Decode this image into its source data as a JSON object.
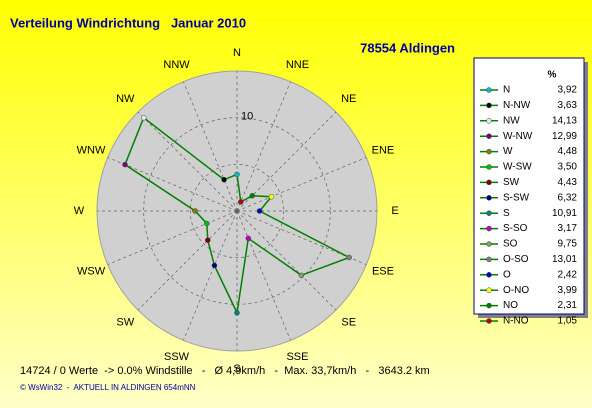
{
  "chart_data": {
    "type": "radar",
    "title": "Verteilung Windrichtung   Januar 2010",
    "subtitle": "78554 Aldingen",
    "categories": [
      "N",
      "NNE",
      "NE",
      "ENE",
      "E",
      "ESE",
      "SE",
      "SSE",
      "S",
      "SSW",
      "SW",
      "WSW",
      "W",
      "WNW",
      "NW",
      "NNW"
    ],
    "series": [
      {
        "color": "#008000",
        "point_names": [
          "N",
          "N-NO",
          "NO",
          "O-NO",
          "O",
          "O-SO",
          "SO",
          "S-SO",
          "S",
          "S-SW",
          "SW",
          "W-SW",
          "W",
          "W-NW",
          "NW",
          "N-NW"
        ],
        "point_colors": [
          "#00c0c0",
          "#c00000",
          "#008000",
          "#ffff00",
          "#0000c0",
          "#808080",
          "#80a060",
          "#c000c0",
          "#008080",
          "#000080",
          "#800000",
          "#00c000",
          "#808000",
          "#800080",
          "#e8e8e8",
          "#000000"
        ],
        "values": [
          3.92,
          1.05,
          2.31,
          3.99,
          2.42,
          13.01,
          9.75,
          3.17,
          10.91,
          6.32,
          4.43,
          3.5,
          4.48,
          12.99,
          14.13,
          3.63
        ],
        "value_labels": [
          "3,92",
          "1,05",
          "2,31",
          "3,99",
          "2,42",
          "13,01",
          "9,75",
          "3,17",
          "10,91",
          "6,32",
          "4,43",
          "3,50",
          "4,48",
          "12,99",
          "14,13",
          "3,63"
        ]
      }
    ],
    "legend_header": "%",
    "ylim": [
      0,
      15
    ],
    "yticks": [
      10
    ],
    "minor_rings": [
      5
    ],
    "footer": "14724 / 0 Werte  -> 0.0% Windstille   -   Ø 4,9km/h   -  Max. 33,7km/h   -   3643.2 km",
    "credit": "© WsWin32  -  AKTUELL IN ALDINGEN 654mNN"
  }
}
